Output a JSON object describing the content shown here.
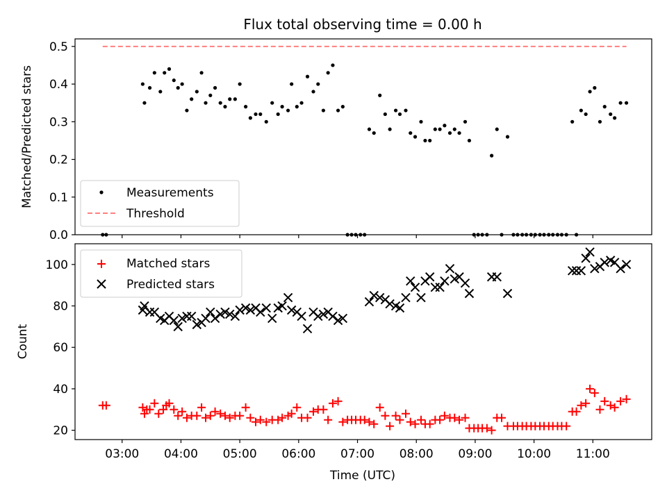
{
  "chart_data": [
    {
      "type": "scatter",
      "title": "Flux total observing time = 0.00 h",
      "xlabel": "",
      "ylabel": "Matched/Predicted stars",
      "xlim_hours": [
        2.2,
        12.0
      ],
      "ylim": [
        0,
        0.52
      ],
      "yticks": [
        "0.0",
        "0.1",
        "0.2",
        "0.3",
        "0.4",
        "0.5"
      ],
      "ytick_values": [
        0,
        0.1,
        0.2,
        0.3,
        0.4,
        0.5
      ],
      "legend_position": "lower-left",
      "series": [
        {
          "name": "Measurements",
          "marker": "dot",
          "color": "#000000",
          "x": [
            2.67,
            2.73,
            3.35,
            3.38,
            3.47,
            3.55,
            3.65,
            3.72,
            3.8,
            3.88,
            3.95,
            4.02,
            4.1,
            4.18,
            4.27,
            4.35,
            4.42,
            4.5,
            4.58,
            4.67,
            4.75,
            4.83,
            4.92,
            5.0,
            5.1,
            5.18,
            5.27,
            5.35,
            5.45,
            5.55,
            5.65,
            5.72,
            5.82,
            5.88,
            5.97,
            6.05,
            6.15,
            6.25,
            6.33,
            6.42,
            6.5,
            6.58,
            6.67,
            6.75,
            6.83,
            6.9,
            6.97,
            7.05,
            7.12,
            7.2,
            7.28,
            7.38,
            7.47,
            7.55,
            7.65,
            7.72,
            7.82,
            7.9,
            7.98,
            8.08,
            8.15,
            8.23,
            8.32,
            8.4,
            8.48,
            8.57,
            8.65,
            8.73,
            8.83,
            8.9,
            8.98,
            9.05,
            9.12,
            9.2,
            9.28,
            9.37,
            9.45,
            9.55,
            9.65,
            9.72,
            9.8,
            9.87,
            9.95,
            10.02,
            10.1,
            10.17,
            10.25,
            10.32,
            10.4,
            10.47,
            10.55,
            10.65,
            10.72,
            10.8,
            10.88,
            10.95,
            11.03,
            11.12,
            11.2,
            11.3,
            11.37,
            11.47,
            11.57
          ],
          "y": [
            0.0,
            0.0,
            0.4,
            0.35,
            0.39,
            0.43,
            0.38,
            0.43,
            0.44,
            0.41,
            0.39,
            0.4,
            0.33,
            0.36,
            0.38,
            0.43,
            0.35,
            0.37,
            0.39,
            0.35,
            0.34,
            0.36,
            0.36,
            0.4,
            0.34,
            0.31,
            0.32,
            0.32,
            0.3,
            0.35,
            0.32,
            0.34,
            0.33,
            0.4,
            0.34,
            0.35,
            0.42,
            0.38,
            0.4,
            0.33,
            0.43,
            0.45,
            0.33,
            0.34,
            0.0,
            0.0,
            0.0,
            0.0,
            0.0,
            0.28,
            0.27,
            0.37,
            0.32,
            0.28,
            0.33,
            0.32,
            0.33,
            0.27,
            0.26,
            0.3,
            0.25,
            0.25,
            0.28,
            0.28,
            0.29,
            0.27,
            0.28,
            0.27,
            0.3,
            0.25,
            0.0,
            0.0,
            0.0,
            0.0,
            0.21,
            0.28,
            0.0,
            0.26,
            0.0,
            0.0,
            0.0,
            0.0,
            0.0,
            0.0,
            0.0,
            0.0,
            0.0,
            0.0,
            0.0,
            0.0,
            0.0,
            0.3,
            0.0,
            0.33,
            0.32,
            0.38,
            0.39,
            0.3,
            0.34,
            0.32,
            0.31,
            0.35,
            0.35
          ]
        },
        {
          "name": "Threshold",
          "marker": "dashed-line",
          "color": "#ff7f7f",
          "x": [
            2.67,
            11.57
          ],
          "y": [
            0.5,
            0.5
          ]
        }
      ]
    },
    {
      "type": "scatter",
      "title": "",
      "xlabel": "Time (UTC)",
      "ylabel": "Count",
      "xlim_hours": [
        2.2,
        12.0
      ],
      "ylim": [
        15.5,
        110
      ],
      "yticks": [
        "20",
        "40",
        "60",
        "80",
        "100"
      ],
      "ytick_values": [
        20,
        40,
        60,
        80,
        100
      ],
      "xticks": [
        "03:00",
        "04:00",
        "05:00",
        "06:00",
        "07:00",
        "08:00",
        "09:00",
        "10:00",
        "11:00"
      ],
      "xtick_values": [
        3,
        4,
        5,
        6,
        7,
        8,
        9,
        10,
        11
      ],
      "legend_position": "upper-left",
      "series": [
        {
          "name": "Matched stars",
          "marker": "plus",
          "color": "#ff0000",
          "x": [
            2.67,
            2.73,
            3.35,
            3.38,
            3.42,
            3.47,
            3.55,
            3.62,
            3.7,
            3.75,
            3.8,
            3.88,
            3.95,
            4.02,
            4.1,
            4.18,
            4.27,
            4.35,
            4.42,
            4.5,
            4.58,
            4.67,
            4.75,
            4.83,
            4.92,
            5.0,
            5.1,
            5.18,
            5.27,
            5.35,
            5.45,
            5.55,
            5.65,
            5.72,
            5.82,
            5.88,
            5.97,
            6.05,
            6.15,
            6.25,
            6.33,
            6.42,
            6.5,
            6.58,
            6.67,
            6.75,
            6.83,
            6.9,
            6.97,
            7.05,
            7.12,
            7.2,
            7.28,
            7.38,
            7.47,
            7.55,
            7.65,
            7.72,
            7.82,
            7.9,
            7.98,
            8.08,
            8.15,
            8.23,
            8.32,
            8.4,
            8.48,
            8.57,
            8.65,
            8.73,
            8.83,
            8.9,
            8.98,
            9.05,
            9.12,
            9.2,
            9.28,
            9.37,
            9.45,
            9.55,
            9.65,
            9.72,
            9.8,
            9.87,
            9.95,
            10.02,
            10.1,
            10.17,
            10.25,
            10.32,
            10.4,
            10.47,
            10.55,
            10.65,
            10.72,
            10.8,
            10.88,
            10.95,
            11.03,
            11.12,
            11.2,
            11.3,
            11.37,
            11.47,
            11.57
          ],
          "y": [
            32,
            32,
            31,
            28,
            30,
            30,
            33,
            28,
            30,
            32,
            33,
            30,
            27,
            29,
            26,
            27,
            27,
            31,
            26,
            27,
            29,
            28,
            27,
            26,
            27,
            27,
            31,
            26,
            24,
            25,
            24,
            25,
            25,
            26,
            27,
            28,
            31,
            26,
            26,
            29,
            30,
            30,
            25,
            33,
            34,
            24,
            25,
            25,
            25,
            25,
            25,
            24,
            23,
            31,
            27,
            22,
            27,
            25,
            28,
            24,
            23,
            25,
            23,
            23,
            25,
            25,
            27,
            26,
            26,
            25,
            26,
            21,
            21,
            21,
            21,
            21,
            20,
            26,
            26,
            22,
            22,
            22,
            22,
            22,
            22,
            22,
            22,
            22,
            22,
            22,
            22,
            22,
            22,
            29,
            29,
            32,
            33,
            40,
            38,
            30,
            34,
            32,
            31,
            34,
            35
          ]
        },
        {
          "name": "Predicted stars",
          "marker": "x",
          "color": "#000000",
          "x": [
            3.35,
            3.38,
            3.47,
            3.55,
            3.65,
            3.72,
            3.8,
            3.88,
            3.95,
            4.02,
            4.1,
            4.18,
            4.27,
            4.35,
            4.42,
            4.5,
            4.58,
            4.67,
            4.75,
            4.83,
            4.92,
            5.0,
            5.1,
            5.18,
            5.27,
            5.35,
            5.45,
            5.55,
            5.65,
            5.72,
            5.82,
            5.88,
            5.97,
            6.05,
            6.15,
            6.25,
            6.33,
            6.42,
            6.5,
            6.58,
            6.67,
            6.75,
            7.2,
            7.28,
            7.38,
            7.47,
            7.55,
            7.65,
            7.72,
            7.82,
            7.9,
            7.98,
            8.08,
            8.15,
            8.23,
            8.32,
            8.4,
            8.48,
            8.57,
            8.65,
            8.73,
            8.83,
            8.9,
            9.28,
            9.37,
            9.55,
            10.65,
            10.72,
            10.8,
            10.88,
            10.95,
            11.03,
            11.12,
            11.2,
            11.3,
            11.37,
            11.47,
            11.57
          ],
          "y": [
            78,
            80,
            77,
            77,
            74,
            73,
            75,
            73,
            70,
            74,
            75,
            75,
            71,
            72,
            74,
            77,
            74,
            76,
            77,
            76,
            75,
            78,
            79,
            78,
            79,
            77,
            79,
            74,
            79,
            80,
            84,
            78,
            77,
            75,
            69,
            77,
            75,
            76,
            77,
            75,
            73,
            74,
            82,
            85,
            84,
            83,
            81,
            80,
            79,
            84,
            92,
            89,
            84,
            92,
            94,
            89,
            89,
            92,
            98,
            93,
            94,
            91,
            86,
            94,
            94,
            86,
            97,
            97,
            97,
            103,
            106,
            98,
            99,
            101,
            102,
            101,
            98,
            100
          ]
        }
      ]
    }
  ]
}
